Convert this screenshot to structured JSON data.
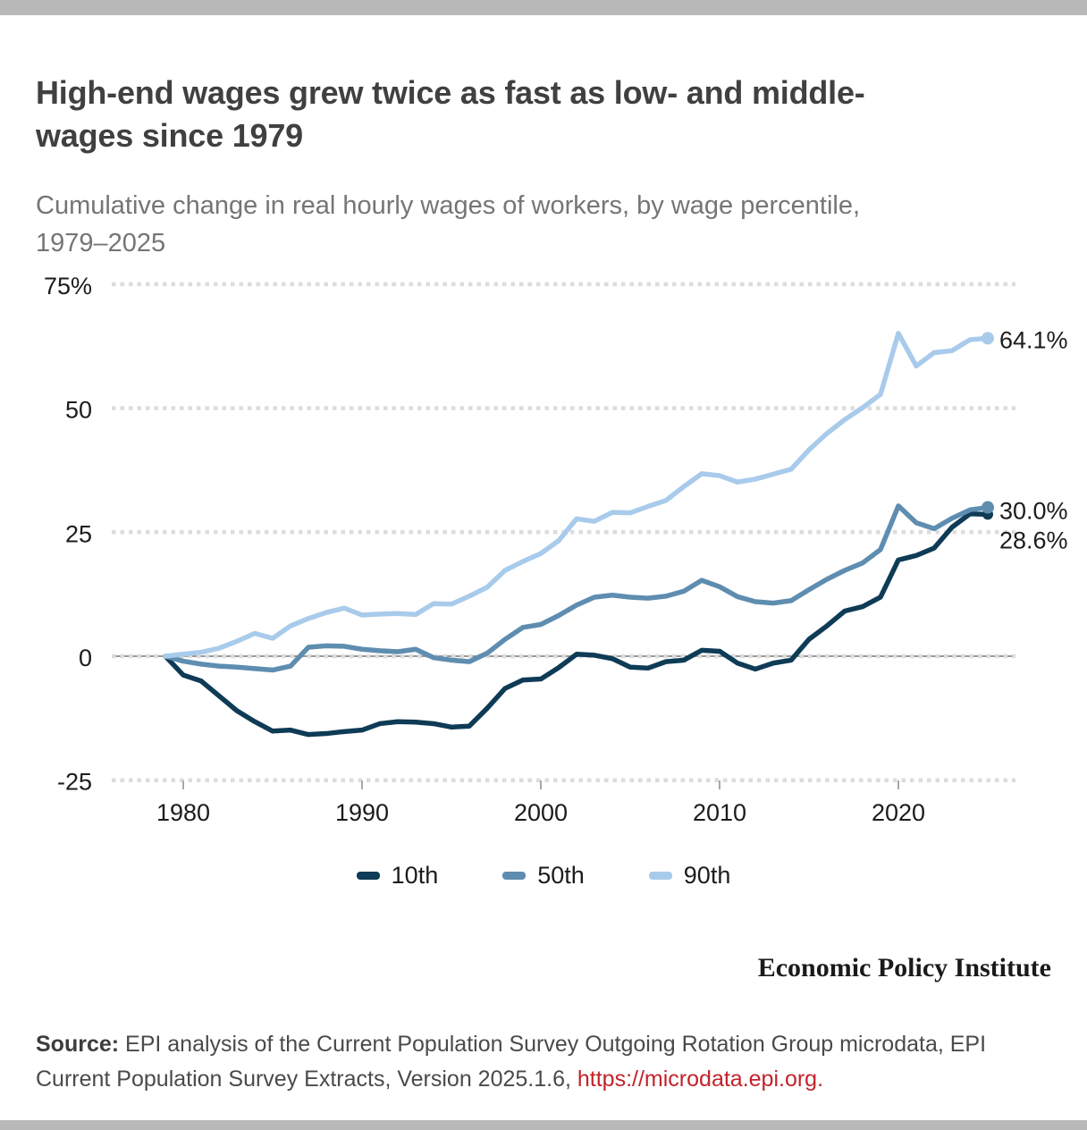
{
  "page": {
    "title_line1": "High-end wages grew twice as fast as low- and middle-",
    "title_line2": "wages since 1979",
    "subtitle_line1": "Cumulative change in real hourly wages of workers, by wage percentile,",
    "subtitle_line2": "1979–2025",
    "branding": "Economic Policy Institute",
    "source_label": "Source:",
    "source_text": " EPI analysis of the Current Population Survey Outgoing Rotation Group microdata, EPI Current Population Survey Extracts, Version 2025.1.6, ",
    "source_link": "https://microdata.epi.org."
  },
  "colors": {
    "title": "#404040",
    "subtitle": "#757575",
    "axis_text": "#1c1c1c",
    "grid": "#dcdcdc",
    "zero_line": "#999999",
    "tick_mark": "#a9a9a9",
    "frame_bar": "#b9b9b9",
    "link_red": "#c2232b"
  },
  "chart_data": {
    "type": "line",
    "title": "High-end wages grew twice as fast as low- and middle-wages since 1979",
    "subtitle": "Cumulative change in real hourly wages of workers, by wage percentile, 1979–2025",
    "xlabel": "",
    "ylabel": "",
    "xlim": [
      1979,
      2025
    ],
    "ylim": [
      -25,
      75
    ],
    "grid": "dotted-horizontal",
    "legend_position": "bottom",
    "xticks": [
      1980,
      1990,
      2000,
      2010,
      2020
    ],
    "yticks": [
      {
        "value": 75,
        "label": "75%"
      },
      {
        "value": 50,
        "label": "50"
      },
      {
        "value": 25,
        "label": "25"
      },
      {
        "value": 0,
        "label": "0"
      },
      {
        "value": -25,
        "label": "-25"
      }
    ],
    "x": [
      1979,
      1980,
      1981,
      1982,
      1983,
      1984,
      1985,
      1986,
      1987,
      1988,
      1989,
      1990,
      1991,
      1992,
      1993,
      1994,
      1995,
      1996,
      1997,
      1998,
      1999,
      2000,
      2001,
      2002,
      2003,
      2004,
      2005,
      2006,
      2007,
      2008,
      2009,
      2010,
      2011,
      2012,
      2013,
      2014,
      2015,
      2016,
      2017,
      2018,
      2019,
      2020,
      2021,
      2022,
      2023,
      2024,
      2025
    ],
    "series": [
      {
        "name": "10th",
        "color": "#0e3b55",
        "end_label": "28.6%",
        "end_value": 28.6,
        "values": [
          0,
          -3.8,
          -5.0,
          -8.0,
          -11.0,
          -13.2,
          -15.1,
          -14.9,
          -15.8,
          -15.6,
          -15.2,
          -14.9,
          -13.6,
          -13.2,
          -13.3,
          -13.6,
          -14.3,
          -14.1,
          -10.5,
          -6.5,
          -4.8,
          -4.6,
          -2.3,
          0.4,
          0.2,
          -0.5,
          -2.2,
          -2.4,
          -1.1,
          -0.8,
          1.2,
          1.0,
          -1.4,
          -2.6,
          -1.4,
          -0.8,
          3.4,
          6.1,
          9.1,
          10.0,
          11.9,
          19.4,
          20.3,
          21.8,
          26.0,
          28.7,
          28.6
        ]
      },
      {
        "name": "50th",
        "color": "#5e8db0",
        "end_label": "30.0%",
        "end_value": 30.0,
        "values": [
          0,
          -1.0,
          -1.6,
          -2.0,
          -2.2,
          -2.5,
          -2.8,
          -2.0,
          1.8,
          2.1,
          2.0,
          1.4,
          1.1,
          0.9,
          1.4,
          -0.3,
          -0.8,
          -1.1,
          0.6,
          3.4,
          5.8,
          6.4,
          8.2,
          10.3,
          11.9,
          12.3,
          11.9,
          11.7,
          12.1,
          13.1,
          15.3,
          14.0,
          12.0,
          11.0,
          10.7,
          11.2,
          13.4,
          15.5,
          17.3,
          18.8,
          21.5,
          30.3,
          26.9,
          25.7,
          27.8,
          29.5,
          30.0
        ]
      },
      {
        "name": "90th",
        "color": "#a9cbeb",
        "end_label": "64.1%",
        "end_value": 64.1,
        "values": [
          0,
          0.4,
          0.8,
          1.6,
          3.0,
          4.6,
          3.6,
          6.1,
          7.6,
          8.8,
          9.7,
          8.3,
          8.5,
          8.6,
          8.4,
          10.6,
          10.5,
          12.1,
          13.9,
          17.3,
          19.1,
          20.7,
          23.3,
          27.7,
          27.2,
          29.0,
          28.9,
          30.2,
          31.4,
          34.2,
          36.8,
          36.4,
          35.1,
          35.7,
          36.7,
          37.7,
          41.6,
          44.9,
          47.7,
          50.1,
          52.8,
          65.1,
          58.5,
          61.2,
          61.6,
          63.8,
          64.1
        ]
      }
    ]
  }
}
